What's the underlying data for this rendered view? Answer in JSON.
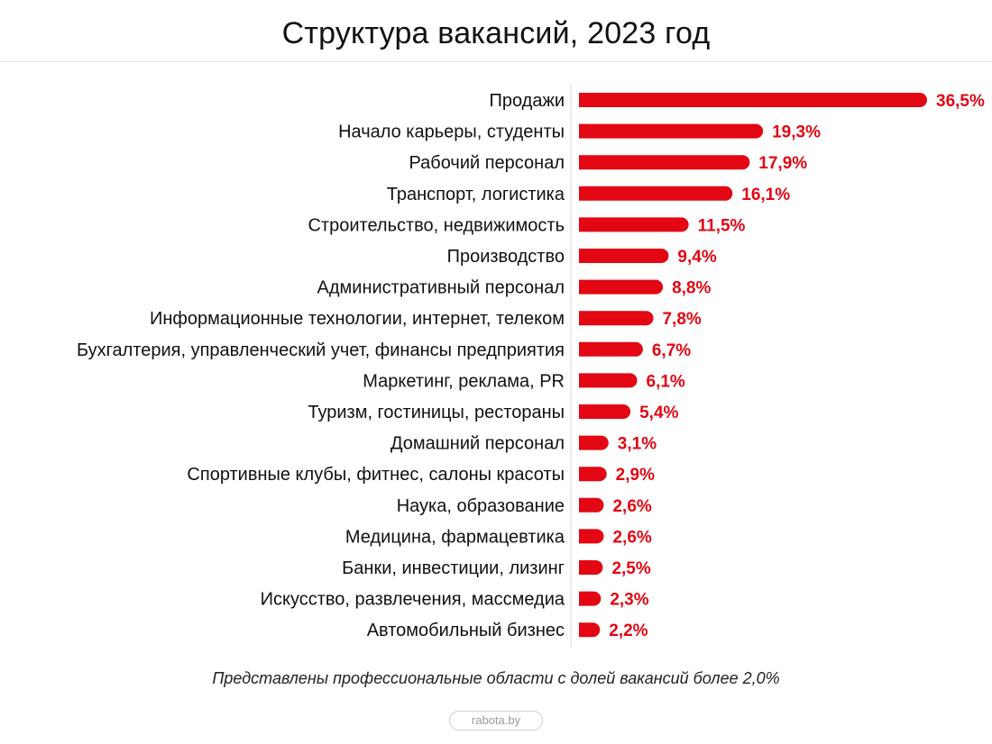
{
  "header": {
    "title": "Структура вакансий, 2023 год"
  },
  "footnote": "Представлены профессиональные области с долей вакансий более 2,0%",
  "source": "rabota.by",
  "colors": {
    "bar": "#e30613",
    "value_text": "#e30613"
  },
  "chart_data": {
    "type": "bar",
    "orientation": "horizontal",
    "title": "Структура вакансий, 2023 год",
    "unit": "%",
    "grid": false,
    "categories": [
      "Продажи",
      "Начало карьеры, студенты",
      "Рабочий персонал",
      "Транспорт, логистика",
      "Строительство, недвижимость",
      "Производство",
      "Административный персонал",
      "Информационные технологии, интернет, телеком",
      "Бухгалтерия, управленческий учет, финансы предприятия",
      "Маркетинг, реклама, PR",
      "Туризм, гостиницы, рестораны",
      "Домашний персонал",
      "Спортивные клубы, фитнес, салоны красоты",
      "Наука, образование",
      "Медицина, фармацевтика",
      "Банки, инвестиции, лизинг",
      "Искусство, развлечения, массмедиа",
      "Автомобильный бизнес"
    ],
    "values": [
      36.5,
      19.3,
      17.9,
      16.1,
      11.5,
      9.4,
      8.8,
      7.8,
      6.7,
      6.1,
      5.4,
      3.1,
      2.9,
      2.6,
      2.6,
      2.5,
      2.3,
      2.2
    ],
    "value_labels": [
      "36,5%",
      "19,3%",
      "17,9%",
      "16,1%",
      "11,5%",
      "9,4%",
      "8,8%",
      "7,8%",
      "6,7%",
      "6,1%",
      "5,4%",
      "3,1%",
      "2,9%",
      "2,6%",
      "2,6%",
      "2,5%",
      "2,3%",
      "2,2%"
    ],
    "xlim": [
      0,
      36.5
    ]
  }
}
